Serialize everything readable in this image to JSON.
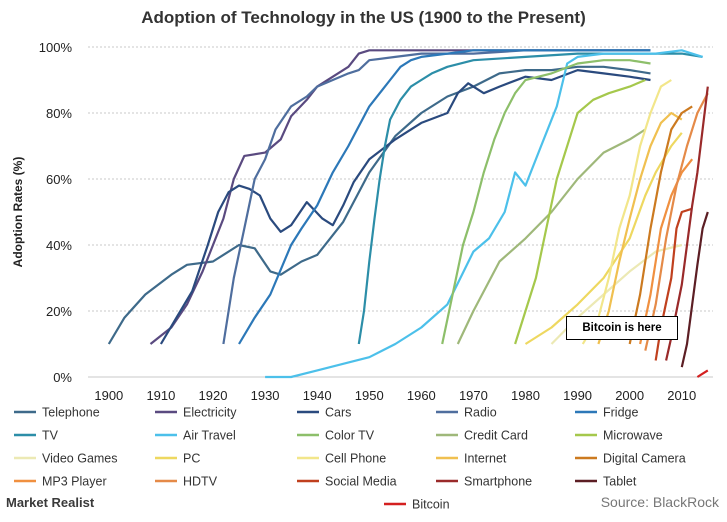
{
  "chart_data": {
    "type": "line",
    "title": "Adoption of Technology in the US (1900 to the Present)",
    "xlabel": "",
    "ylabel": "Adoption Rates (%)",
    "xlim": [
      1896,
      2016
    ],
    "ylim": [
      0,
      100
    ],
    "x_ticks": [
      1900,
      1910,
      1920,
      1930,
      1940,
      1950,
      1960,
      1970,
      1980,
      1990,
      2000,
      2010
    ],
    "y_ticks": [
      0,
      20,
      40,
      60,
      80,
      100
    ],
    "y_tick_labels": [
      "0%",
      "20%",
      "40%",
      "60%",
      "80%",
      "100%"
    ],
    "grid": "horizontal dotted",
    "legend": "bottom",
    "annotation": "Bitcoin is here",
    "series": [
      {
        "name": "Telephone",
        "color": "#3e6a8a",
        "points": [
          [
            1900,
            10
          ],
          [
            1903,
            18
          ],
          [
            1907,
            25
          ],
          [
            1912,
            31
          ],
          [
            1915,
            34
          ],
          [
            1920,
            35
          ],
          [
            1925,
            40
          ],
          [
            1928,
            39
          ],
          [
            1931,
            32
          ],
          [
            1933,
            31
          ],
          [
            1937,
            35
          ],
          [
            1940,
            37
          ],
          [
            1945,
            47
          ],
          [
            1950,
            62
          ],
          [
            1955,
            73
          ],
          [
            1960,
            80
          ],
          [
            1965,
            85
          ],
          [
            1970,
            88
          ],
          [
            1975,
            92
          ],
          [
            1980,
            93
          ],
          [
            1985,
            93
          ],
          [
            1990,
            94
          ],
          [
            1995,
            94
          ],
          [
            2000,
            93
          ],
          [
            2004,
            92
          ]
        ]
      },
      {
        "name": "Electricity",
        "color": "#5a4a80",
        "points": [
          [
            1908,
            10
          ],
          [
            1912,
            15
          ],
          [
            1915,
            22
          ],
          [
            1918,
            32
          ],
          [
            1920,
            40
          ],
          [
            1922,
            48
          ],
          [
            1924,
            60
          ],
          [
            1926,
            67
          ],
          [
            1930,
            68
          ],
          [
            1933,
            72
          ],
          [
            1935,
            79
          ],
          [
            1938,
            84
          ],
          [
            1940,
            88
          ],
          [
            1943,
            91
          ],
          [
            1946,
            94
          ],
          [
            1948,
            98
          ],
          [
            1950,
            99
          ],
          [
            1955,
            99
          ],
          [
            1960,
            99
          ],
          [
            1970,
            99
          ],
          [
            1980,
            99
          ],
          [
            2004,
            99
          ]
        ]
      },
      {
        "name": "Cars",
        "color": "#2a4a7e",
        "points": [
          [
            1910,
            10
          ],
          [
            1913,
            18
          ],
          [
            1916,
            26
          ],
          [
            1919,
            40
          ],
          [
            1921,
            50
          ],
          [
            1923,
            56
          ],
          [
            1925,
            58
          ],
          [
            1927,
            57
          ],
          [
            1929,
            55
          ],
          [
            1931,
            48
          ],
          [
            1933,
            44
          ],
          [
            1935,
            46
          ],
          [
            1938,
            53
          ],
          [
            1941,
            48
          ],
          [
            1943,
            46
          ],
          [
            1945,
            52
          ],
          [
            1947,
            59
          ],
          [
            1950,
            66
          ],
          [
            1955,
            72
          ],
          [
            1960,
            77
          ],
          [
            1965,
            80
          ],
          [
            1967,
            86
          ],
          [
            1969,
            89
          ],
          [
            1972,
            86
          ],
          [
            1975,
            88
          ],
          [
            1980,
            91
          ],
          [
            1985,
            90
          ],
          [
            1990,
            93
          ],
          [
            1995,
            92
          ],
          [
            2000,
            91
          ],
          [
            2004,
            90
          ]
        ]
      },
      {
        "name": "Radio",
        "color": "#4f6e9e",
        "points": [
          [
            1922,
            10
          ],
          [
            1924,
            30
          ],
          [
            1926,
            45
          ],
          [
            1928,
            60
          ],
          [
            1930,
            66
          ],
          [
            1932,
            75
          ],
          [
            1935,
            82
          ],
          [
            1938,
            85
          ],
          [
            1940,
            88
          ],
          [
            1943,
            90
          ],
          [
            1946,
            92
          ],
          [
            1948,
            93
          ],
          [
            1950,
            96
          ],
          [
            1955,
            97
          ],
          [
            1960,
            98
          ],
          [
            1965,
            98
          ],
          [
            1970,
            98
          ],
          [
            1980,
            99
          ],
          [
            2004,
            99
          ]
        ]
      },
      {
        "name": "Fridge",
        "color": "#2c78b8",
        "points": [
          [
            1925,
            10
          ],
          [
            1928,
            18
          ],
          [
            1931,
            25
          ],
          [
            1935,
            40
          ],
          [
            1937,
            45
          ],
          [
            1940,
            52
          ],
          [
            1943,
            62
          ],
          [
            1946,
            70
          ],
          [
            1948,
            76
          ],
          [
            1950,
            82
          ],
          [
            1952,
            86
          ],
          [
            1954,
            90
          ],
          [
            1956,
            94
          ],
          [
            1958,
            96
          ],
          [
            1960,
            97
          ],
          [
            1965,
            98
          ],
          [
            1970,
            99
          ],
          [
            1980,
            99
          ],
          [
            2004,
            99
          ]
        ]
      },
      {
        "name": "TV",
        "color": "#2c8ea8",
        "points": [
          [
            1948,
            10
          ],
          [
            1949,
            20
          ],
          [
            1950,
            35
          ],
          [
            1951,
            48
          ],
          [
            1952,
            60
          ],
          [
            1953,
            70
          ],
          [
            1954,
            78
          ],
          [
            1956,
            84
          ],
          [
            1958,
            88
          ],
          [
            1960,
            90
          ],
          [
            1962,
            92
          ],
          [
            1965,
            94
          ],
          [
            1970,
            96
          ],
          [
            1980,
            97
          ],
          [
            1990,
            98
          ],
          [
            2000,
            98
          ],
          [
            2010,
            98
          ],
          [
            2014,
            97
          ]
        ]
      },
      {
        "name": "Air Travel",
        "color": "#4cc0ea",
        "points": [
          [
            1930,
            0
          ],
          [
            1935,
            0
          ],
          [
            1940,
            2
          ],
          [
            1945,
            4
          ],
          [
            1950,
            6
          ],
          [
            1955,
            10
          ],
          [
            1960,
            15
          ],
          [
            1965,
            22
          ],
          [
            1970,
            38
          ],
          [
            1973,
            42
          ],
          [
            1976,
            50
          ],
          [
            1978,
            62
          ],
          [
            1980,
            58
          ],
          [
            1983,
            70
          ],
          [
            1986,
            82
          ],
          [
            1988,
            95
          ],
          [
            1990,
            97
          ],
          [
            1995,
            98
          ],
          [
            2000,
            98
          ],
          [
            2005,
            98
          ],
          [
            2010,
            99
          ],
          [
            2014,
            97
          ]
        ]
      },
      {
        "name": "Color TV",
        "color": "#8dbf6a",
        "points": [
          [
            1964,
            10
          ],
          [
            1966,
            25
          ],
          [
            1968,
            40
          ],
          [
            1970,
            50
          ],
          [
            1972,
            62
          ],
          [
            1974,
            72
          ],
          [
            1976,
            80
          ],
          [
            1978,
            86
          ],
          [
            1980,
            90
          ],
          [
            1985,
            92
          ],
          [
            1990,
            95
          ],
          [
            1995,
            96
          ],
          [
            2000,
            96
          ],
          [
            2004,
            95
          ]
        ]
      },
      {
        "name": "Credit Card",
        "color": "#9fb87a",
        "points": [
          [
            1967,
            10
          ],
          [
            1970,
            20
          ],
          [
            1975,
            35
          ],
          [
            1980,
            42
          ],
          [
            1985,
            50
          ],
          [
            1990,
            60
          ],
          [
            1995,
            68
          ],
          [
            2000,
            72
          ],
          [
            2003,
            75
          ]
        ]
      },
      {
        "name": "Microwave",
        "color": "#a5c84c",
        "points": [
          [
            1978,
            10
          ],
          [
            1980,
            20
          ],
          [
            1982,
            30
          ],
          [
            1984,
            45
          ],
          [
            1986,
            60
          ],
          [
            1988,
            70
          ],
          [
            1990,
            80
          ],
          [
            1993,
            84
          ],
          [
            1996,
            86
          ],
          [
            2000,
            88
          ],
          [
            2003,
            90
          ]
        ]
      },
      {
        "name": "Video Games",
        "color": "#ece9b4",
        "points": [
          [
            1985,
            10
          ],
          [
            1990,
            18
          ],
          [
            1995,
            25
          ],
          [
            2000,
            32
          ],
          [
            2005,
            38
          ],
          [
            2010,
            40
          ]
        ]
      },
      {
        "name": "PC",
        "color": "#eed860",
        "points": [
          [
            1980,
            10
          ],
          [
            1985,
            15
          ],
          [
            1990,
            22
          ],
          [
            1995,
            30
          ],
          [
            2000,
            42
          ],
          [
            2003,
            55
          ],
          [
            2005,
            62
          ],
          [
            2008,
            70
          ],
          [
            2010,
            74
          ]
        ]
      },
      {
        "name": "Cell Phone",
        "color": "#f2e68a",
        "points": [
          [
            1991,
            10
          ],
          [
            1994,
            18
          ],
          [
            1996,
            30
          ],
          [
            1998,
            45
          ],
          [
            2000,
            55
          ],
          [
            2002,
            70
          ],
          [
            2004,
            80
          ],
          [
            2006,
            88
          ],
          [
            2008,
            90
          ]
        ]
      },
      {
        "name": "Internet",
        "color": "#f0c050",
        "points": [
          [
            1994,
            10
          ],
          [
            1996,
            20
          ],
          [
            1998,
            35
          ],
          [
            2000,
            48
          ],
          [
            2002,
            60
          ],
          [
            2004,
            70
          ],
          [
            2006,
            77
          ],
          [
            2008,
            80
          ],
          [
            2010,
            78
          ]
        ]
      },
      {
        "name": "Digital Camera",
        "color": "#cc7a20",
        "points": [
          [
            2000,
            10
          ],
          [
            2002,
            25
          ],
          [
            2004,
            45
          ],
          [
            2006,
            62
          ],
          [
            2008,
            75
          ],
          [
            2010,
            80
          ],
          [
            2012,
            82
          ]
        ]
      },
      {
        "name": "MP3 Player",
        "color": "#f09040",
        "points": [
          [
            2002,
            10
          ],
          [
            2004,
            25
          ],
          [
            2006,
            45
          ],
          [
            2008,
            55
          ],
          [
            2010,
            62
          ],
          [
            2012,
            66
          ]
        ]
      },
      {
        "name": "HDTV",
        "color": "#e58a48",
        "points": [
          [
            2003,
            8
          ],
          [
            2005,
            22
          ],
          [
            2007,
            42
          ],
          [
            2009,
            58
          ],
          [
            2011,
            70
          ],
          [
            2013,
            80
          ],
          [
            2015,
            86
          ]
        ]
      },
      {
        "name": "Social Media",
        "color": "#c0401e",
        "points": [
          [
            2005,
            5
          ],
          [
            2006,
            15
          ],
          [
            2008,
            30
          ],
          [
            2009,
            45
          ],
          [
            2010,
            50
          ],
          [
            2012,
            51
          ]
        ]
      },
      {
        "name": "Smartphone",
        "color": "#9a2a2a",
        "points": [
          [
            2007,
            5
          ],
          [
            2008,
            12
          ],
          [
            2009,
            20
          ],
          [
            2010,
            28
          ],
          [
            2011,
            40
          ],
          [
            2012,
            52
          ],
          [
            2013,
            62
          ],
          [
            2014,
            75
          ],
          [
            2015,
            88
          ]
        ]
      },
      {
        "name": "Tablet",
        "color": "#5c1e24",
        "points": [
          [
            2010,
            3
          ],
          [
            2011,
            10
          ],
          [
            2012,
            22
          ],
          [
            2013,
            34
          ],
          [
            2014,
            45
          ],
          [
            2015,
            50
          ]
        ]
      },
      {
        "name": "Bitcoin",
        "color": "#d42020",
        "points": [
          [
            2013,
            0
          ],
          [
            2014,
            1
          ],
          [
            2015,
            2
          ]
        ]
      }
    ]
  },
  "footer": {
    "brand": "Market Realist",
    "source": "Source: BlackRock"
  }
}
